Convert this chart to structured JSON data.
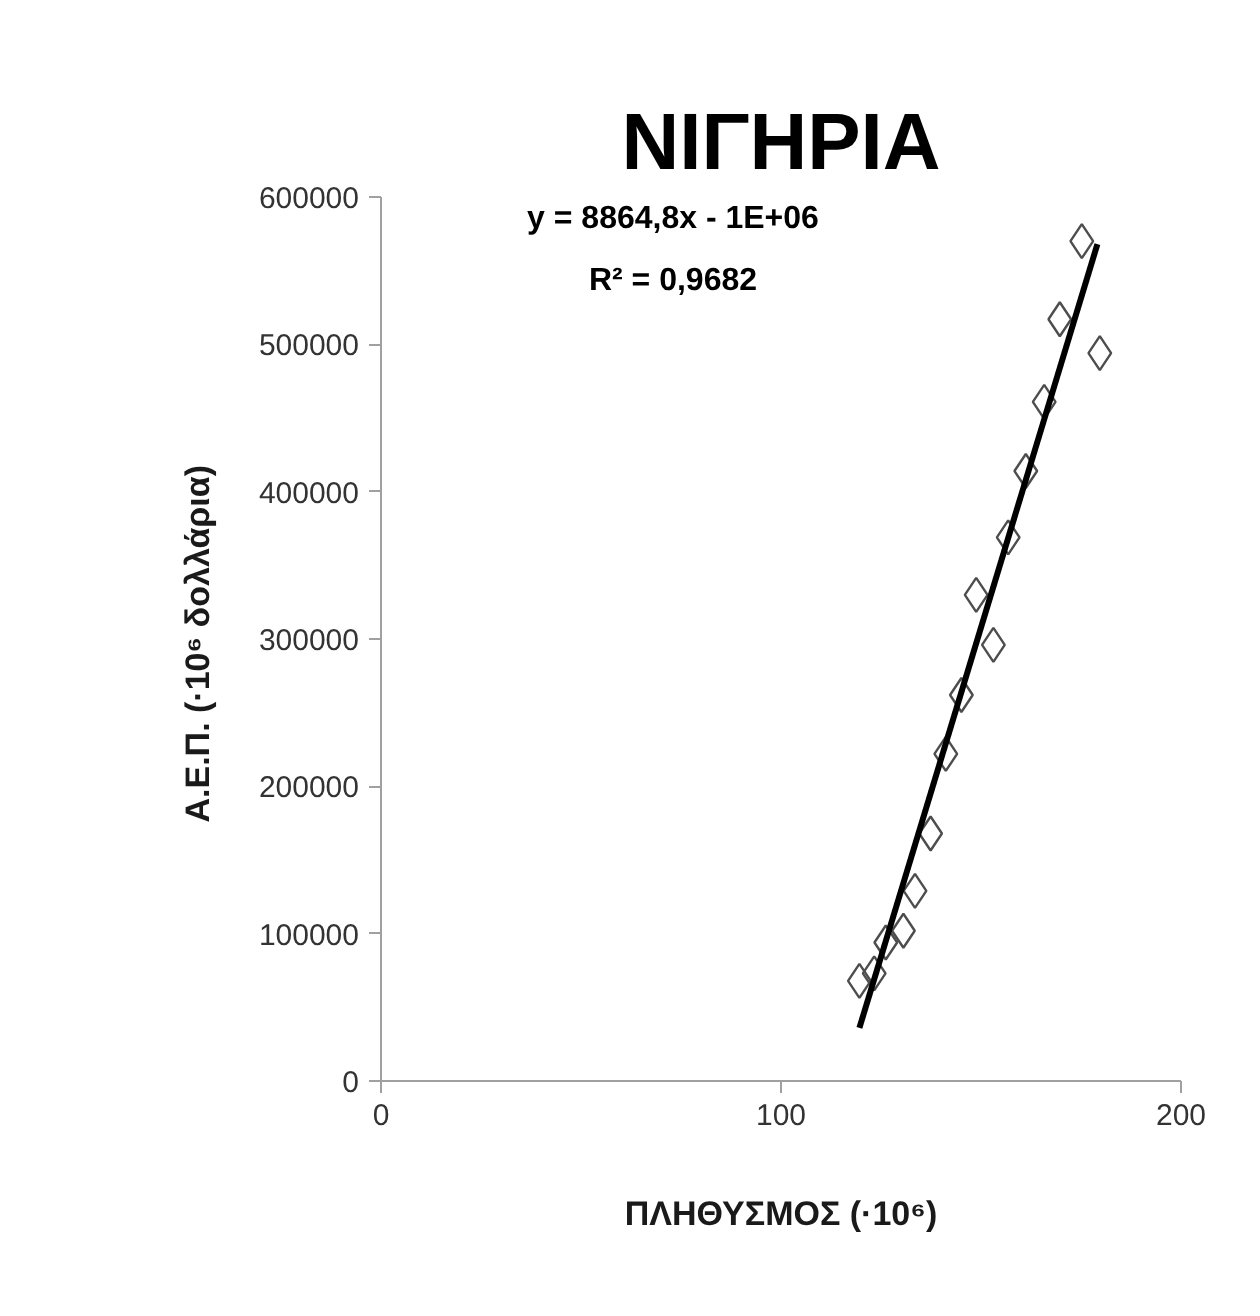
{
  "chart_data": {
    "type": "scatter",
    "title": "ΝΙΓΗΡΙΑ",
    "xlabel": "ΠΛΗΘΥΣΜΟΣ (·10⁶)",
    "ylabel": "Α.Ε.Π.  (·10⁶ δολλάρια)",
    "annotations": [
      "y = 8864,8x - 1E+06",
      "R² = 0,9682"
    ],
    "xlim": [
      0,
      200
    ],
    "ylim": [
      0,
      600000
    ],
    "xticks": [
      0,
      100,
      200
    ],
    "yticks": [
      0,
      100000,
      200000,
      300000,
      400000,
      500000,
      600000
    ],
    "grid": false,
    "marker": "diamond",
    "series": [
      {
        "color": "#4d4d4d",
        "x": [
          119.6,
          123.3,
          126.2,
          130.6,
          133.5,
          137.4,
          141.2,
          145.1,
          153.1,
          148.8,
          156.8,
          161.2,
          165.8,
          169.7,
          179.7,
          175.2
        ],
        "values": [
          68000,
          73000,
          94000,
          102000,
          129000,
          168000,
          222000,
          262000,
          296000,
          330000,
          369000,
          414000,
          461000,
          517000,
          494000,
          570000
        ]
      },
      {
        "type": "line",
        "color": "#000000",
        "marker": "none",
        "line_style": "solid",
        "x": [
          119.6,
          179.1
        ],
        "values": [
          36000,
          568000
        ]
      }
    ]
  }
}
